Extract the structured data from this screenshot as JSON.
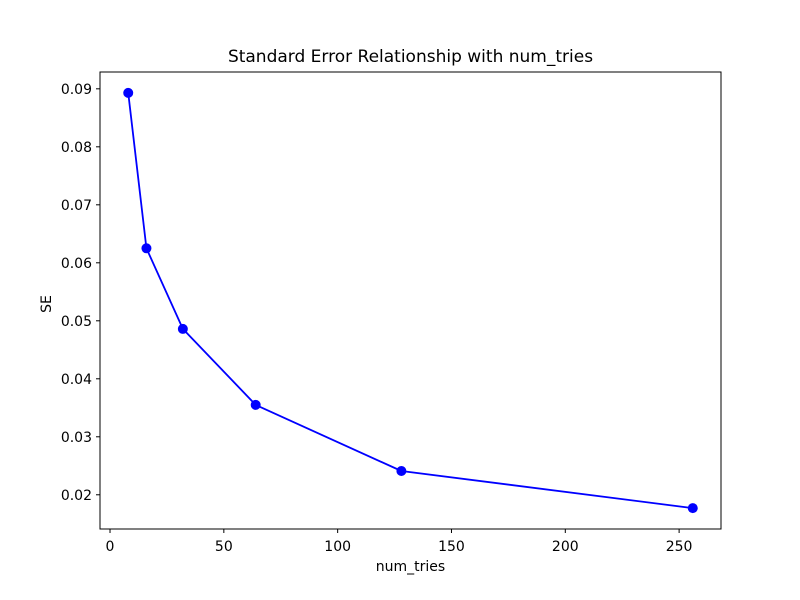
{
  "figure": {
    "background": "#ffffff"
  },
  "chart_data": {
    "type": "line",
    "title": "Standard Error Relationship with num_tries",
    "xlabel": "num_tries",
    "ylabel": "SE",
    "x": [
      8,
      16,
      32,
      64,
      128,
      256
    ],
    "y": [
      0.0893,
      0.0625,
      0.0486,
      0.0355,
      0.0241,
      0.0177
    ],
    "series_name": "SE",
    "line_color": "#0000ff",
    "marker": "circle",
    "marker_color": "#0000ff",
    "xticks": [
      0,
      50,
      100,
      150,
      200,
      250
    ],
    "xtick_labels": [
      "0",
      "50",
      "100",
      "150",
      "200",
      "250"
    ],
    "yticks": [
      0.02,
      0.03,
      0.04,
      0.05,
      0.06,
      0.07,
      0.08,
      0.09
    ],
    "ytick_labels": [
      "0.02",
      "0.03",
      "0.04",
      "0.05",
      "0.06",
      "0.07",
      "0.08",
      "0.09"
    ],
    "xlim": [
      -4.4,
      268.4
    ],
    "ylim": [
      0.0141,
      0.0929
    ],
    "grid": false,
    "legend": null,
    "axis_color": "#000000",
    "text_color": "#000000"
  }
}
